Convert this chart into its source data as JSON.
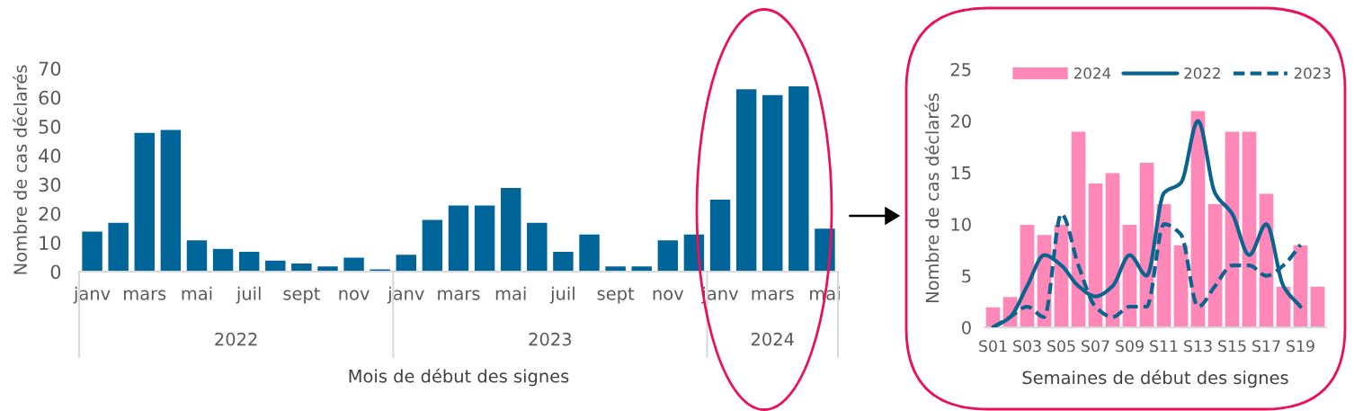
{
  "chart_data": [
    {
      "type": "bar",
      "xlabel": "Mois de début des signes",
      "ylabel": "Nombre de cas déclarés",
      "categories": [
        "janv",
        null,
        "mars",
        null,
        "mai",
        null,
        "juil",
        null,
        "sept",
        null,
        "nov",
        null,
        "janv",
        null,
        "mars",
        null,
        "mai",
        null,
        "juil",
        null,
        "sept",
        null,
        "nov",
        null,
        "janv",
        null,
        "mars",
        null,
        "mai"
      ],
      "values": [
        14,
        17,
        48,
        49,
        11,
        8,
        7,
        4,
        3,
        2,
        5,
        1,
        6,
        18,
        23,
        23,
        29,
        17,
        7,
        13,
        2,
        2,
        11,
        13,
        25,
        63,
        61,
        64,
        15
      ],
      "color": "#00669a",
      "ylim": [
        0,
        70
      ],
      "yticks": [
        0,
        10,
        20,
        30,
        40,
        50,
        60,
        70
      ],
      "grid": false,
      "annotations": [
        "2022",
        "2023",
        "2024"
      ]
    },
    {
      "type": "bar",
      "xlabel": "Semaines de début des signes",
      "ylabel": "Nombre de cas déclarés",
      "categories": [
        "S01",
        null,
        "S03",
        null,
        "S05",
        null,
        "S07",
        null,
        "S09",
        null,
        "S11",
        null,
        "S13",
        null,
        "S15",
        null,
        "S17",
        null,
        "S19",
        null
      ],
      "series": [
        {
          "name": "2024",
          "type": "bar",
          "color": "#ff88b9",
          "values": [
            2,
            3,
            10,
            9,
            10,
            19,
            14,
            15,
            10,
            16,
            12,
            8,
            21,
            12,
            19,
            19,
            13,
            4,
            8,
            4
          ]
        },
        {
          "name": "2022",
          "type": "line",
          "line_style": "solid",
          "color": "#0b6490",
          "values": [
            0,
            1,
            4,
            7,
            6,
            4,
            3,
            4,
            7,
            5,
            13,
            14,
            20,
            13,
            11,
            7,
            10,
            4,
            2,
            null
          ]
        },
        {
          "name": "2023",
          "type": "line",
          "line_style": "dashed",
          "color": "#0b6490",
          "values": [
            0,
            1,
            2,
            1,
            11,
            6,
            2,
            1,
            2,
            2,
            10,
            9,
            2,
            4,
            6,
            6,
            5,
            6,
            8,
            null
          ]
        }
      ],
      "ylim": [
        0,
        25
      ],
      "yticks": [
        0,
        5,
        10,
        15,
        20,
        25
      ],
      "grid": false,
      "legend": "top",
      "marker": "none"
    }
  ]
}
